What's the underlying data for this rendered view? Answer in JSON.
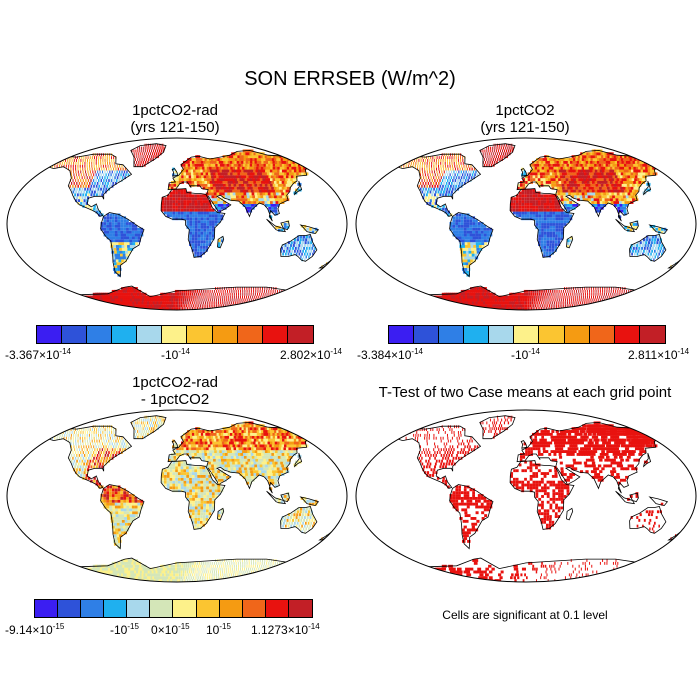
{
  "title": "SON ERRSEB (W/m^2)",
  "panels": {
    "p1": {
      "title1": "1pctCO2-rad",
      "title2": "(yrs 121-150)"
    },
    "p2": {
      "title1": "1pctCO2",
      "title2": "(yrs 121-150)"
    },
    "p3": {
      "title1": "1pctCO2-rad",
      "title2": "- 1pctCO2"
    },
    "p4": {
      "title1": "T-Test of two Case means at each grid point"
    }
  },
  "colorbars": {
    "cb1": {
      "colors": [
        "#3b1ef2",
        "#2e52d9",
        "#2f7fe6",
        "#1fb0ef",
        "#a8d8ec",
        "#fdf18a",
        "#fbc531",
        "#f59b12",
        "#f0661a",
        "#e8120f",
        "#c21f26"
      ],
      "labels": {
        "left_mant": "-3.367",
        "left_exp": "-14",
        "mid": "-10",
        "mid_exp": "-14",
        "right_mant": "2.802",
        "right_exp": "-14"
      }
    },
    "cb2": {
      "colors": [
        "#3b1ef2",
        "#2e52d9",
        "#2f7fe6",
        "#1fb0ef",
        "#a8d8ec",
        "#fdf18a",
        "#fbc531",
        "#f59b12",
        "#f0661a",
        "#e8120f",
        "#c21f26"
      ],
      "labels": {
        "left_mant": "-3.384",
        "left_exp": "-14",
        "mid": "-10",
        "mid_exp": "-14",
        "right_mant": "2.811",
        "right_exp": "-14"
      }
    },
    "cb3": {
      "colors": [
        "#3b1ef2",
        "#2e52d9",
        "#2f7fe6",
        "#1fb0ef",
        "#a8d8ec",
        "#d4e6b8",
        "#fdf18a",
        "#fbc531",
        "#f59b12",
        "#f0661a",
        "#e8120f",
        "#c21f26"
      ],
      "labels": {
        "a_mant": "-9.14",
        "a_exp": "-15",
        "b": "-10",
        "b_exp": "-15",
        "c": "0",
        "c_exp": "-15",
        "d": "10",
        "d_exp": "-15",
        "e_mant": "1.1273",
        "e_exp": "-14"
      }
    }
  },
  "note": "Cells are significant at 0.1 level",
  "times_sign": "×"
}
